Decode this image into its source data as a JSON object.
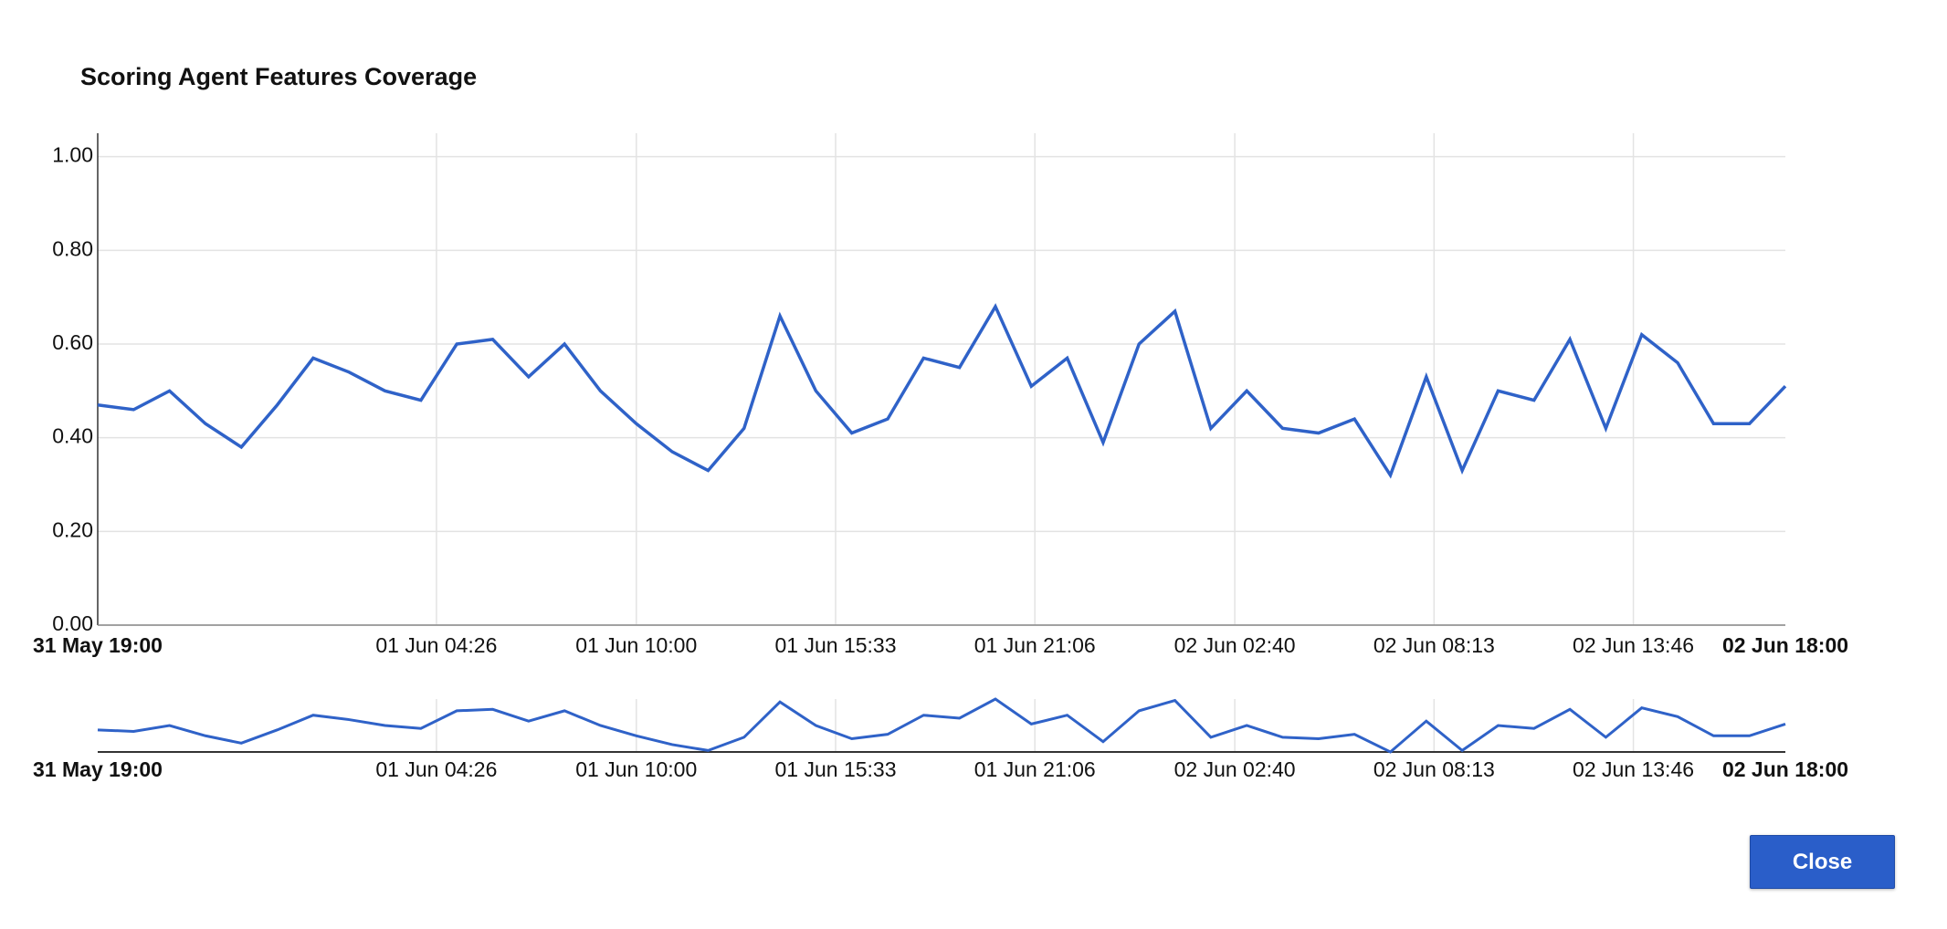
{
  "chart_data": {
    "type": "line",
    "title": "Scoring Agent Features Coverage",
    "x": [
      "31 May 19:00",
      "31 May 20:00",
      "31 May 21:00",
      "31 May 22:00",
      "31 May 23:00",
      "01 Jun 00:00",
      "01 Jun 01:00",
      "01 Jun 02:00",
      "01 Jun 03:00",
      "01 Jun 04:00",
      "01 Jun 05:00",
      "01 Jun 06:00",
      "01 Jun 07:00",
      "01 Jun 08:00",
      "01 Jun 09:00",
      "01 Jun 10:00",
      "01 Jun 11:00",
      "01 Jun 12:00",
      "01 Jun 13:00",
      "01 Jun 14:00",
      "01 Jun 15:00",
      "01 Jun 16:00",
      "01 Jun 17:00",
      "01 Jun 18:00",
      "01 Jun 19:00",
      "01 Jun 20:00",
      "01 Jun 21:00",
      "01 Jun 22:00",
      "01 Jun 23:00",
      "02 Jun 00:00",
      "02 Jun 01:00",
      "02 Jun 02:00",
      "02 Jun 03:00",
      "02 Jun 04:00",
      "02 Jun 05:00",
      "02 Jun 06:00",
      "02 Jun 07:00",
      "02 Jun 08:00",
      "02 Jun 09:00",
      "02 Jun 10:00",
      "02 Jun 11:00",
      "02 Jun 12:00",
      "02 Jun 13:00",
      "02 Jun 14:00",
      "02 Jun 15:00",
      "02 Jun 16:00",
      "02 Jun 17:00",
      "02 Jun 18:00"
    ],
    "series": [
      {
        "color": "#2f62c8",
        "values": [
          0.47,
          0.46,
          0.5,
          0.43,
          0.38,
          0.47,
          0.57,
          0.54,
          0.5,
          0.48,
          0.6,
          0.61,
          0.53,
          0.6,
          0.5,
          0.43,
          0.37,
          0.33,
          0.42,
          0.66,
          0.5,
          0.41,
          0.44,
          0.57,
          0.55,
          0.68,
          0.51,
          0.57,
          0.39,
          0.6,
          0.67,
          0.42,
          0.5,
          0.42,
          0.41,
          0.44,
          0.32,
          0.53,
          0.33,
          0.5,
          0.48,
          0.61,
          0.42,
          0.62,
          0.56,
          0.43,
          0.43,
          0.51
        ]
      }
    ],
    "xlim": [
      "31 May 19:00",
      "02 Jun 18:00"
    ],
    "xticks": [
      "31 May 19:00",
      "01 Jun 04:26",
      "01 Jun 10:00",
      "01 Jun 15:33",
      "01 Jun 21:06",
      "02 Jun 02:40",
      "02 Jun 08:13",
      "02 Jun 13:46",
      "02 Jun 18:00"
    ],
    "ylim": [
      0,
      1.05
    ],
    "yticks": [
      {
        "value": 0,
        "label": "0.00"
      },
      {
        "value": 0.2,
        "label": "0.20"
      },
      {
        "value": 0.4,
        "label": "0.40"
      },
      {
        "value": 0.6,
        "label": "0.60"
      },
      {
        "value": 0.8,
        "label": "0.80"
      },
      {
        "value": 1,
        "label": "1.00"
      }
    ],
    "grid": true
  },
  "button": {
    "label": "Close"
  }
}
